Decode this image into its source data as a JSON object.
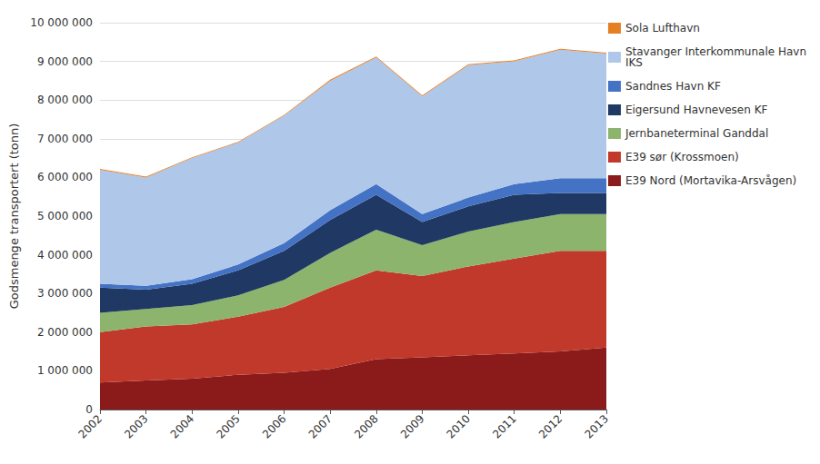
{
  "chart_data": {
    "type": "area",
    "stacked": true,
    "categories": [
      "2002",
      "2003",
      "2004",
      "2005",
      "2006",
      "2007",
      "2008",
      "2009",
      "2010",
      "2011",
      "2012",
      "2013"
    ],
    "series": [
      {
        "name": "E39 Nord (Mortavika-Arsvågen)",
        "color": "#8B1A1A",
        "values": [
          700000,
          750000,
          800000,
          900000,
          950000,
          1050000,
          1300000,
          1350000,
          1400000,
          1450000,
          1500000,
          1600000
        ]
      },
      {
        "name": "E39 sør (Krossmoen)",
        "color": "#C0392B",
        "values": [
          1300000,
          1400000,
          1400000,
          1500000,
          1700000,
          2100000,
          2300000,
          2100000,
          2300000,
          2450000,
          2600000,
          2500000
        ]
      },
      {
        "name": "Jernbaneterminal Ganddal",
        "color": "#8DB46C",
        "values": [
          500000,
          450000,
          500000,
          550000,
          700000,
          900000,
          1050000,
          800000,
          900000,
          950000,
          950000,
          950000
        ]
      },
      {
        "name": "Eigersund Havnevesen KF",
        "color": "#1F3864",
        "values": [
          650000,
          500000,
          550000,
          650000,
          750000,
          850000,
          900000,
          600000,
          650000,
          700000,
          550000,
          550000
        ]
      },
      {
        "name": "Sandnes Havn KF",
        "color": "#4472C4",
        "values": [
          100000,
          100000,
          120000,
          150000,
          200000,
          250000,
          280000,
          200000,
          230000,
          280000,
          380000,
          380000
        ]
      },
      {
        "name": "Stavanger Interkommunale Havn\nIKS",
        "color": "#AFC7E8",
        "values": [
          2950000,
          2800000,
          3130000,
          3150000,
          3300000,
          3350000,
          3270000,
          3050000,
          3420000,
          3170000,
          3320000,
          3220000
        ]
      },
      {
        "name": "Sola Lufthavn",
        "color": "#E67E22",
        "values": [
          20000,
          20000,
          20000,
          20000,
          20000,
          25000,
          25000,
          25000,
          25000,
          25000,
          25000,
          25000
        ]
      }
    ],
    "ylabel": "Godsmenge transportert (tonn)",
    "ylim": [
      0,
      10000000
    ],
    "yticks": [
      0,
      {
        "value": 1000000,
        "label": "1 000 000"
      },
      {
        "value": 2000000,
        "label": "2 000 000"
      },
      {
        "value": 3000000,
        "label": "3 000 000"
      },
      {
        "value": 4000000,
        "label": "4 000 000"
      },
      {
        "value": 5000000,
        "label": "5 000 000"
      },
      {
        "value": 6000000,
        "label": "6 000 000"
      },
      {
        "value": 7000000,
        "label": "7 000 000"
      },
      {
        "value": 8000000,
        "label": "8 000 000"
      },
      {
        "value": 9000000,
        "label": "9 000 000"
      },
      {
        "value": 10000000,
        "label": "10 000 000"
      }
    ],
    "grid": true,
    "legend": "right"
  }
}
